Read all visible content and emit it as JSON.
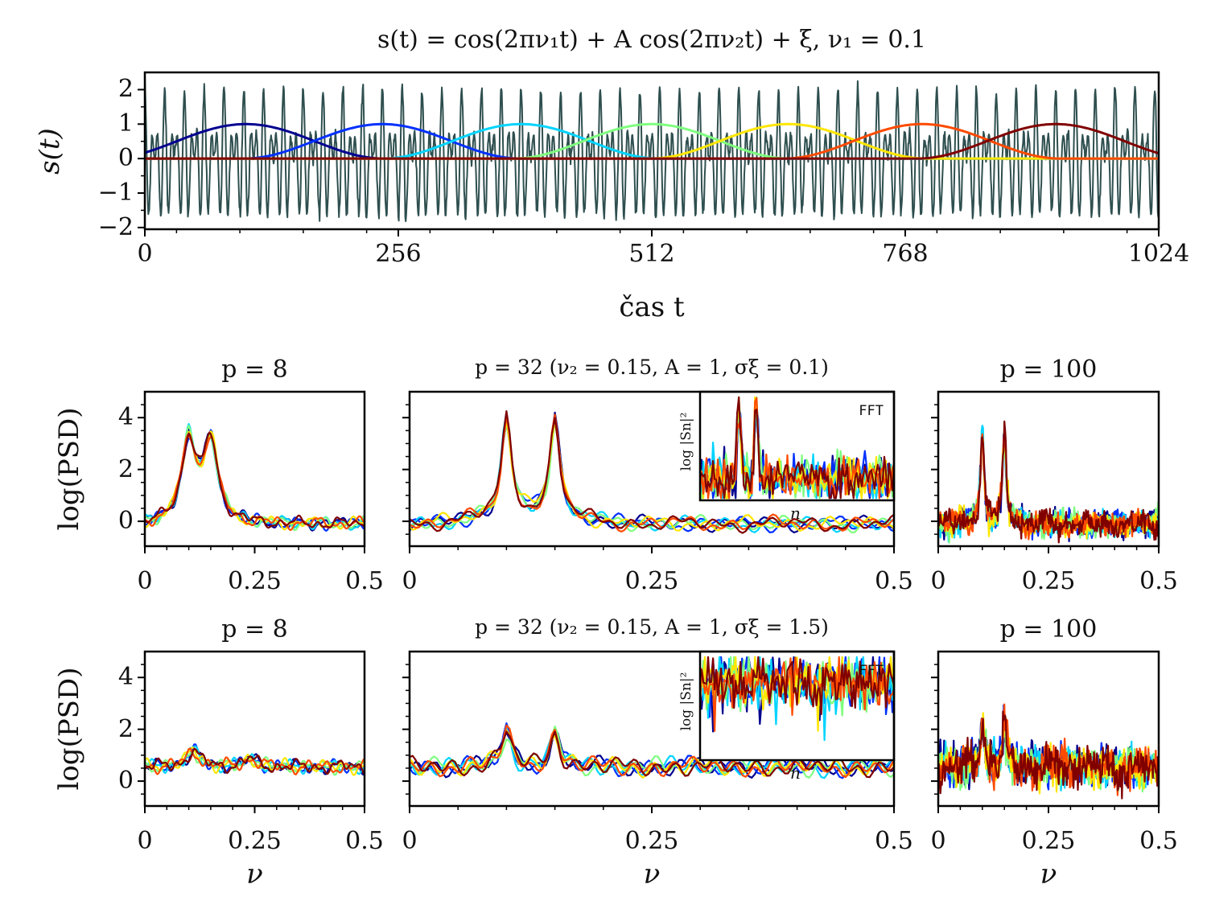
{
  "chart_data": [
    {
      "type": "line",
      "title": "s(t) = cos(2πν₁t) + A cos(2πν₂t) + ξ,    ν₁ = 0.1",
      "xlabel": "čas t",
      "ylabel": "s(t)",
      "xlim": [
        0,
        1024
      ],
      "ylim": [
        -2,
        2.5
      ],
      "xticks": [
        "0",
        "256",
        "512",
        "768",
        "1024"
      ],
      "yticks": [
        "−2",
        "−1",
        "0",
        "1",
        "2"
      ],
      "signal": {
        "nu1": 0.1,
        "nu2": 0.15,
        "A": 1,
        "color": "#2f4f4f"
      },
      "windows": {
        "centers": [
          102,
          240,
          380,
          512,
          650,
          785,
          920
        ],
        "height": 1,
        "colors": [
          "#00008f",
          "#0030ff",
          "#00d4ff",
          "#7fff7f",
          "#ffe600",
          "#ff4a00",
          "#800000"
        ]
      }
    },
    {
      "type": "line",
      "title": "p = 8",
      "ylabel": "log(PSD)",
      "xlim": [
        0,
        0.5
      ],
      "ylim": [
        -1,
        5
      ],
      "xticks": [
        "0",
        "0.25",
        "0.5"
      ],
      "yticks": [
        "0",
        "2",
        "4"
      ],
      "peaks": [
        [
          0.1,
          2.9
        ],
        [
          0.15,
          2.9
        ]
      ],
      "noise_sigma": 0.1
    },
    {
      "type": "line",
      "title": "p = 32 (ν₂ = 0.15, A = 1, σξ = 0.1)",
      "xlim": [
        0,
        0.5
      ],
      "ylim": [
        -1,
        5
      ],
      "xticks": [
        "0",
        "0.25",
        "0.5"
      ],
      "peaks": [
        [
          0.1,
          3.7
        ],
        [
          0.15,
          3.7
        ]
      ],
      "noise_sigma": 0.1,
      "inset": {
        "label": "FFT",
        "ylabel": "log |Sn|²",
        "xlabel": "n"
      }
    },
    {
      "type": "line",
      "title": "p = 100",
      "xlim": [
        0,
        0.5
      ],
      "ylim": [
        -1,
        5
      ],
      "xticks": [
        "0",
        "0.25",
        "0.5"
      ],
      "peaks": [
        [
          0.1,
          3.5
        ],
        [
          0.15,
          3.5
        ]
      ],
      "noise_sigma": 0.1
    },
    {
      "type": "line",
      "title": "p = 8",
      "ylabel": "log(PSD)",
      "xlabel": "ν",
      "xlim": [
        0,
        0.5
      ],
      "ylim": [
        -1,
        5
      ],
      "xticks": [
        "0",
        "0.25",
        "0.5"
      ],
      "yticks": [
        "0",
        "2",
        "4"
      ],
      "peaks": [
        [
          0.11,
          1.1
        ],
        [
          0.24,
          0.8
        ]
      ],
      "noise_sigma": 1.5
    },
    {
      "type": "line",
      "title": "p = 32 (ν₂ = 0.15, A = 1, σξ = 1.5)",
      "xlabel": "ν",
      "xlim": [
        0,
        0.5
      ],
      "ylim": [
        -1,
        5
      ],
      "xticks": [
        "0",
        "0.25",
        "0.5"
      ],
      "peaks": [
        [
          0.1,
          1.9
        ],
        [
          0.15,
          1.8
        ]
      ],
      "noise_sigma": 1.5,
      "inset": {
        "label": "FFT",
        "ylabel": "log |Sn|²",
        "xlabel": "n"
      }
    },
    {
      "type": "line",
      "title": "p = 100",
      "xlabel": "ν",
      "xlim": [
        0,
        0.5
      ],
      "ylim": [
        -1,
        5
      ],
      "xticks": [
        "0",
        "0.25",
        "0.5"
      ],
      "peaks": [
        [
          0.1,
          2.2
        ],
        [
          0.15,
          2.3
        ]
      ],
      "noise_sigma": 1.5
    }
  ]
}
